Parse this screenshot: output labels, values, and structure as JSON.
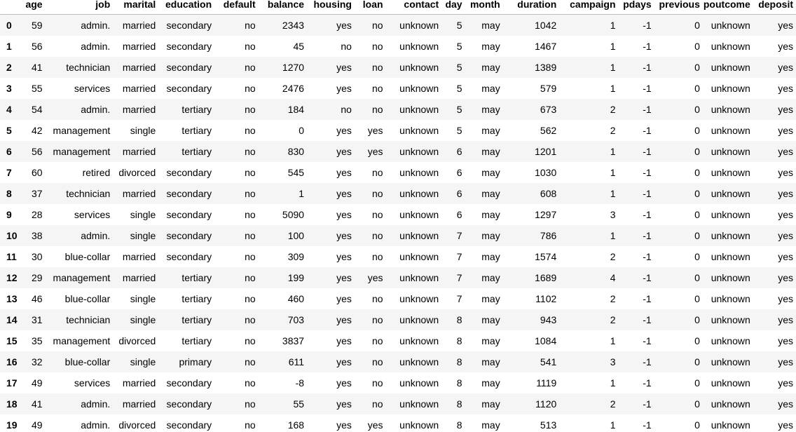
{
  "table": {
    "columns": [
      "age",
      "job",
      "marital",
      "education",
      "default",
      "balance",
      "housing",
      "loan",
      "contact",
      "day",
      "month",
      "duration",
      "campaign",
      "pdays",
      "previous",
      "poutcome",
      "deposit"
    ],
    "rows": [
      {
        "index": "0",
        "cells": [
          "59",
          "admin.",
          "married",
          "secondary",
          "no",
          "2343",
          "yes",
          "no",
          "unknown",
          "5",
          "may",
          "1042",
          "1",
          "-1",
          "0",
          "unknown",
          "yes"
        ]
      },
      {
        "index": "1",
        "cells": [
          "56",
          "admin.",
          "married",
          "secondary",
          "no",
          "45",
          "no",
          "no",
          "unknown",
          "5",
          "may",
          "1467",
          "1",
          "-1",
          "0",
          "unknown",
          "yes"
        ]
      },
      {
        "index": "2",
        "cells": [
          "41",
          "technician",
          "married",
          "secondary",
          "no",
          "1270",
          "yes",
          "no",
          "unknown",
          "5",
          "may",
          "1389",
          "1",
          "-1",
          "0",
          "unknown",
          "yes"
        ]
      },
      {
        "index": "3",
        "cells": [
          "55",
          "services",
          "married",
          "secondary",
          "no",
          "2476",
          "yes",
          "no",
          "unknown",
          "5",
          "may",
          "579",
          "1",
          "-1",
          "0",
          "unknown",
          "yes"
        ]
      },
      {
        "index": "4",
        "cells": [
          "54",
          "admin.",
          "married",
          "tertiary",
          "no",
          "184",
          "no",
          "no",
          "unknown",
          "5",
          "may",
          "673",
          "2",
          "-1",
          "0",
          "unknown",
          "yes"
        ]
      },
      {
        "index": "5",
        "cells": [
          "42",
          "management",
          "single",
          "tertiary",
          "no",
          "0",
          "yes",
          "yes",
          "unknown",
          "5",
          "may",
          "562",
          "2",
          "-1",
          "0",
          "unknown",
          "yes"
        ]
      },
      {
        "index": "6",
        "cells": [
          "56",
          "management",
          "married",
          "tertiary",
          "no",
          "830",
          "yes",
          "yes",
          "unknown",
          "6",
          "may",
          "1201",
          "1",
          "-1",
          "0",
          "unknown",
          "yes"
        ]
      },
      {
        "index": "7",
        "cells": [
          "60",
          "retired",
          "divorced",
          "secondary",
          "no",
          "545",
          "yes",
          "no",
          "unknown",
          "6",
          "may",
          "1030",
          "1",
          "-1",
          "0",
          "unknown",
          "yes"
        ]
      },
      {
        "index": "8",
        "cells": [
          "37",
          "technician",
          "married",
          "secondary",
          "no",
          "1",
          "yes",
          "no",
          "unknown",
          "6",
          "may",
          "608",
          "1",
          "-1",
          "0",
          "unknown",
          "yes"
        ]
      },
      {
        "index": "9",
        "cells": [
          "28",
          "services",
          "single",
          "secondary",
          "no",
          "5090",
          "yes",
          "no",
          "unknown",
          "6",
          "may",
          "1297",
          "3",
          "-1",
          "0",
          "unknown",
          "yes"
        ]
      },
      {
        "index": "10",
        "cells": [
          "38",
          "admin.",
          "single",
          "secondary",
          "no",
          "100",
          "yes",
          "no",
          "unknown",
          "7",
          "may",
          "786",
          "1",
          "-1",
          "0",
          "unknown",
          "yes"
        ]
      },
      {
        "index": "11",
        "cells": [
          "30",
          "blue-collar",
          "married",
          "secondary",
          "no",
          "309",
          "yes",
          "no",
          "unknown",
          "7",
          "may",
          "1574",
          "2",
          "-1",
          "0",
          "unknown",
          "yes"
        ]
      },
      {
        "index": "12",
        "cells": [
          "29",
          "management",
          "married",
          "tertiary",
          "no",
          "199",
          "yes",
          "yes",
          "unknown",
          "7",
          "may",
          "1689",
          "4",
          "-1",
          "0",
          "unknown",
          "yes"
        ]
      },
      {
        "index": "13",
        "cells": [
          "46",
          "blue-collar",
          "single",
          "tertiary",
          "no",
          "460",
          "yes",
          "no",
          "unknown",
          "7",
          "may",
          "1102",
          "2",
          "-1",
          "0",
          "unknown",
          "yes"
        ]
      },
      {
        "index": "14",
        "cells": [
          "31",
          "technician",
          "single",
          "tertiary",
          "no",
          "703",
          "yes",
          "no",
          "unknown",
          "8",
          "may",
          "943",
          "2",
          "-1",
          "0",
          "unknown",
          "yes"
        ]
      },
      {
        "index": "15",
        "cells": [
          "35",
          "management",
          "divorced",
          "tertiary",
          "no",
          "3837",
          "yes",
          "no",
          "unknown",
          "8",
          "may",
          "1084",
          "1",
          "-1",
          "0",
          "unknown",
          "yes"
        ]
      },
      {
        "index": "16",
        "cells": [
          "32",
          "blue-collar",
          "single",
          "primary",
          "no",
          "611",
          "yes",
          "no",
          "unknown",
          "8",
          "may",
          "541",
          "3",
          "-1",
          "0",
          "unknown",
          "yes"
        ]
      },
      {
        "index": "17",
        "cells": [
          "49",
          "services",
          "married",
          "secondary",
          "no",
          "-8",
          "yes",
          "no",
          "unknown",
          "8",
          "may",
          "1119",
          "1",
          "-1",
          "0",
          "unknown",
          "yes"
        ]
      },
      {
        "index": "18",
        "cells": [
          "41",
          "admin.",
          "married",
          "secondary",
          "no",
          "55",
          "yes",
          "no",
          "unknown",
          "8",
          "may",
          "1120",
          "2",
          "-1",
          "0",
          "unknown",
          "yes"
        ]
      },
      {
        "index": "19",
        "cells": [
          "49",
          "admin.",
          "divorced",
          "secondary",
          "no",
          "168",
          "yes",
          "yes",
          "unknown",
          "8",
          "may",
          "513",
          "1",
          "-1",
          "0",
          "unknown",
          "yes"
        ]
      }
    ]
  }
}
